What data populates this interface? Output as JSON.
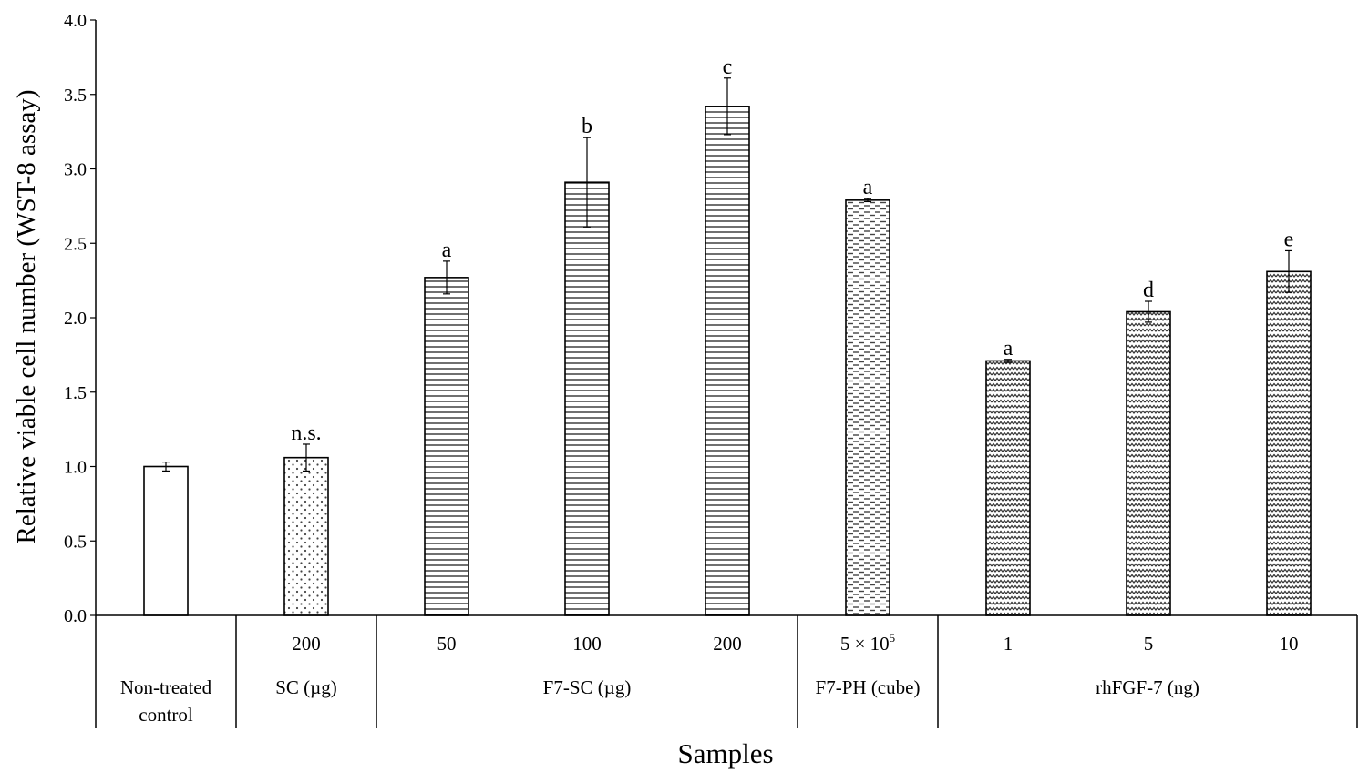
{
  "chart_data": {
    "type": "bar",
    "ylabel": "Relative viable cell number (WST-8 assay)",
    "xlabel": "Samples",
    "ylim": [
      0,
      4.0
    ],
    "yticks": [
      "0.0",
      "0.5",
      "1.0",
      "1.5",
      "2.0",
      "2.5",
      "3.0",
      "3.5",
      "4.0"
    ],
    "bars": [
      {
        "group": 0,
        "dose": "",
        "value": 1.0,
        "err": 0.03,
        "sig": "",
        "pattern": "none"
      },
      {
        "group": 1,
        "dose": "200",
        "value": 1.06,
        "err": 0.09,
        "sig": "n.s.",
        "pattern": "dots"
      },
      {
        "group": 2,
        "dose": "50",
        "value": 2.27,
        "err": 0.11,
        "sig": "a",
        "pattern": "hlines"
      },
      {
        "group": 2,
        "dose": "100",
        "value": 2.91,
        "err": 0.3,
        "sig": "b",
        "pattern": "hlines"
      },
      {
        "group": 2,
        "dose": "200",
        "value": 3.42,
        "err": 0.19,
        "sig": "c",
        "pattern": "hlines"
      },
      {
        "group": 3,
        "dose": "5 × 10",
        "dose_sup": "5",
        "value": 2.79,
        "err": 0.01,
        "sig": "a",
        "pattern": "dashes"
      },
      {
        "group": 4,
        "dose": "1",
        "value": 1.71,
        "err": 0.01,
        "sig": "a",
        "pattern": "zigzag"
      },
      {
        "group": 4,
        "dose": "5",
        "value": 2.04,
        "err": 0.07,
        "sig": "d",
        "pattern": "zigzag"
      },
      {
        "group": 4,
        "dose": "10",
        "value": 2.31,
        "err": 0.14,
        "sig": "e",
        "pattern": "zigzag"
      }
    ],
    "groups": [
      {
        "label_lines": [
          "Non-treated",
          "control"
        ]
      },
      {
        "label_lines": [
          "SC (µg)"
        ]
      },
      {
        "label_lines": [
          "F7-SC (µg)"
        ]
      },
      {
        "label_lines": [
          "F7-PH (cube)"
        ]
      },
      {
        "label_lines": [
          "rhFGF-7 (ng)"
        ]
      }
    ]
  }
}
